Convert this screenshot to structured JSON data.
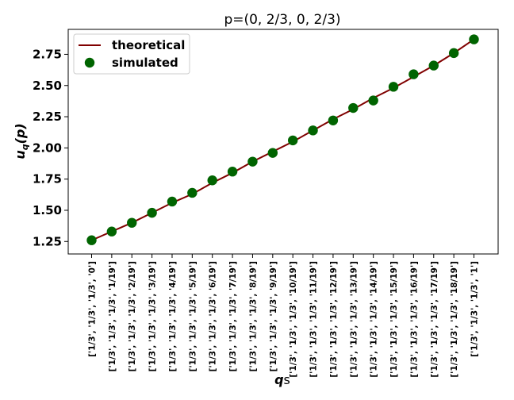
{
  "chart_data": {
    "type": "line",
    "title": "p=(0, 2/3, 0, 2/3)",
    "xlabel_main": "q",
    "xlabel_suffix": "s",
    "ylabel_main": "u",
    "ylabel_sub": "q",
    "ylabel_arg": "(p)",
    "ylim": [
      1.15,
      2.95
    ],
    "yticks": [
      "1.25",
      "1.50",
      "1.75",
      "2.00",
      "2.25",
      "2.50",
      "2.75"
    ],
    "categories": [
      "['1/3', '1/3', '1/3', '0']",
      "['1/3', '1/3', '1/3', '1/19']",
      "['1/3', '1/3', '1/3', '2/19']",
      "['1/3', '1/3', '1/3', '3/19']",
      "['1/3', '1/3', '1/3', '4/19']",
      "['1/3', '1/3', '1/3', '5/19']",
      "['1/3', '1/3', '1/3', '6/19']",
      "['1/3', '1/3', '1/3', '7/19']",
      "['1/3', '1/3', '1/3', '8/19']",
      "['1/3', '1/3', '1/3', '9/19']",
      "['1/3', '1/3', '1/3', '10/19']",
      "['1/3', '1/3', '1/3', '11/19']",
      "['1/3', '1/3', '1/3', '12/19']",
      "['1/3', '1/3', '1/3', '13/19']",
      "['1/3', '1/3', '1/3', '14/19']",
      "['1/3', '1/3', '1/3', '15/19']",
      "['1/3', '1/3', '1/3', '16/19']",
      "['1/3', '1/3', '1/3', '17/19']",
      "['1/3', '1/3', '1/3', '18/19']",
      "['1/3', '1/3', '1/3', '1']"
    ],
    "series": [
      {
        "name": "theoretical",
        "style": "line",
        "color": "#800000",
        "values": [
          1.26,
          1.33,
          1.4,
          1.48,
          1.56,
          1.63,
          1.72,
          1.8,
          1.89,
          1.97,
          2.05,
          2.14,
          2.23,
          2.31,
          2.4,
          2.48,
          2.57,
          2.66,
          2.76,
          2.87
        ]
      },
      {
        "name": "simulated",
        "style": "markers",
        "color": "#006400",
        "values": [
          1.26,
          1.33,
          1.4,
          1.48,
          1.57,
          1.64,
          1.74,
          1.81,
          1.89,
          1.96,
          2.06,
          2.14,
          2.22,
          2.32,
          2.38,
          2.49,
          2.59,
          2.66,
          2.76,
          2.87
        ]
      }
    ],
    "legend_position": "upper-left",
    "grid": false
  }
}
